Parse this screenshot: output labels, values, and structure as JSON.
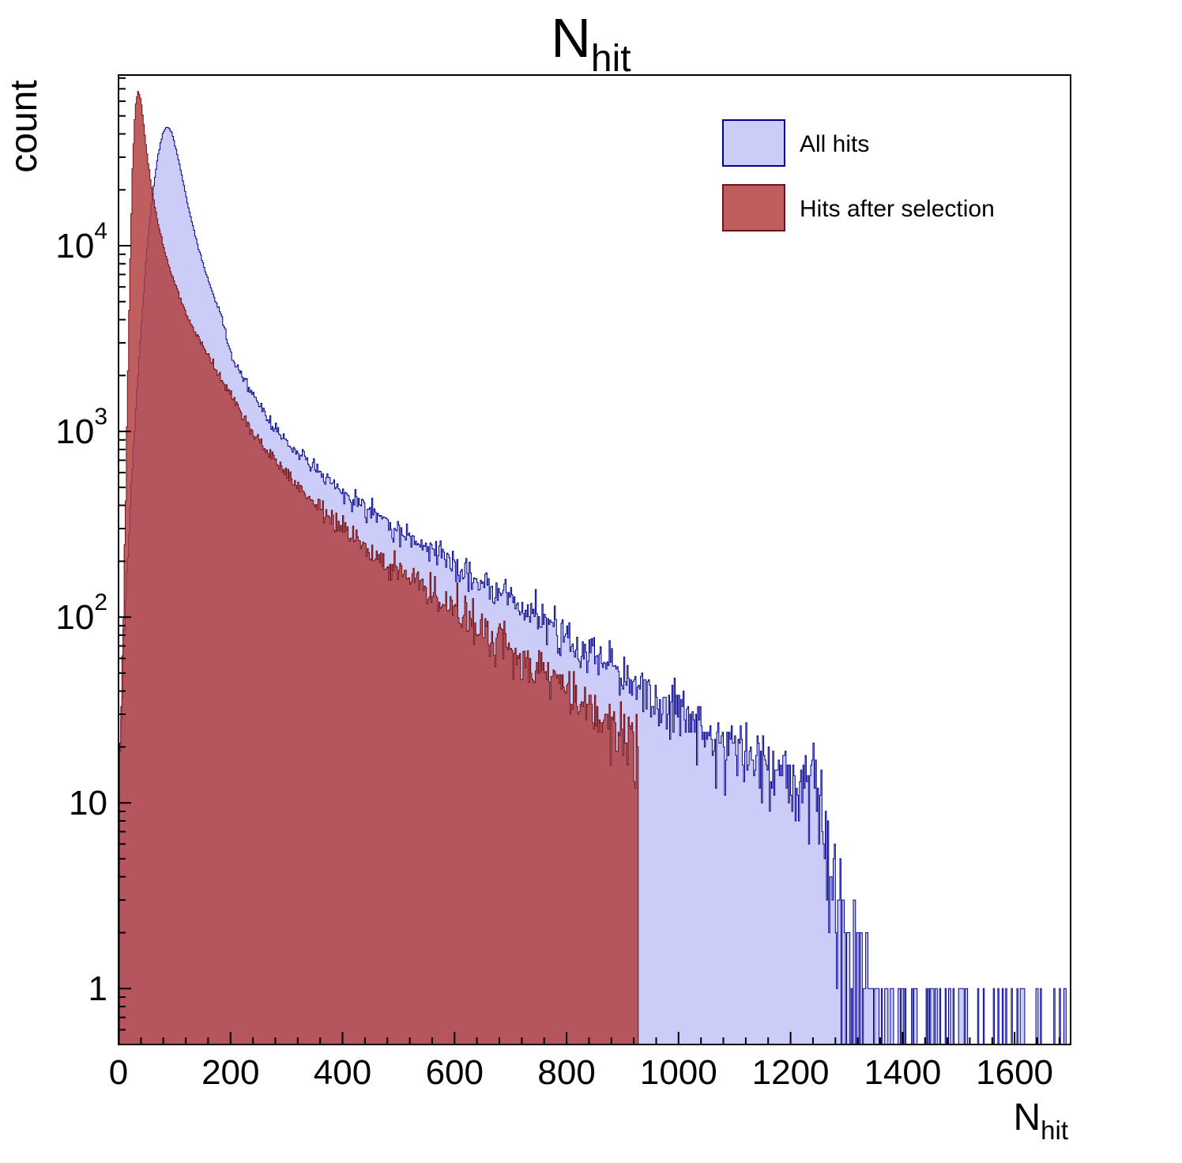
{
  "chart_data": {
    "type": "histogram",
    "title": {
      "main": "N",
      "sub": "hit"
    },
    "xlabel": {
      "main": "N",
      "sub": "hit"
    },
    "ylabel": "count",
    "y_scale": "log",
    "grid": false,
    "x_range": [
      0,
      1700
    ],
    "y_range": [
      0.5,
      83000
    ],
    "x_ticks": [
      0,
      200,
      400,
      600,
      800,
      1000,
      1200,
      1400,
      1600
    ],
    "x_tick_step": 200,
    "x_minor_step": 40,
    "y_ticks": [
      1,
      10,
      100,
      1000,
      10000
    ],
    "bin_width": 2,
    "legend_position": "top-right",
    "series": [
      {
        "name": "All hits",
        "fill": "#ccccf8",
        "stroke": "#00008f",
        "opacity": 1,
        "x_max": 1700,
        "anchors": {
          "x": [
            2,
            6,
            10,
            15,
            20,
            30,
            40,
            50,
            60,
            70,
            80,
            88,
            95,
            105,
            115,
            125,
            140,
            155,
            170,
            185,
            200,
            225,
            250,
            275,
            300,
            350,
            400,
            450,
            500,
            550,
            600,
            650,
            700,
            750,
            800,
            850,
            900,
            950,
            1000,
            1050,
            1100,
            1150,
            1200,
            1245,
            1265,
            1280,
            1300,
            1330,
            1370,
            1420,
            1480,
            1560,
            1650,
            1700
          ],
          "y": [
            15,
            40,
            90,
            180,
            350,
            1200,
            3500,
            9000,
            18000,
            30000,
            41500,
            44000,
            41000,
            31000,
            22500,
            16000,
            10500,
            7300,
            5400,
            4100,
            2600,
            1900,
            1400,
            1100,
            880,
            640,
            480,
            370,
            295,
            235,
            190,
            152,
            122,
            97,
            77,
            61,
            48,
            38,
            30,
            24,
            20,
            17,
            15,
            13,
            6,
            3,
            1.8,
            1.1,
            0.7,
            0.5,
            0.4,
            0.3,
            0.3,
            0.5
          ]
        }
      },
      {
        "name": "Hits after selection",
        "fill": "#b03a3a",
        "stroke": "#721015",
        "opacity": 0.82,
        "x_max": 930,
        "anchors": {
          "x": [
            3,
            8,
            12,
            16,
            20,
            25,
            30,
            35,
            40,
            45,
            50,
            60,
            70,
            80,
            90,
            100,
            115,
            130,
            145,
            160,
            180,
            200,
            225,
            250,
            275,
            300,
            350,
            400,
            450,
            500,
            550,
            600,
            650,
            700,
            750,
            800,
            850,
            900,
            928
          ],
          "y": [
            20,
            80,
            300,
            1500,
            6500,
            26000,
            56000,
            68000,
            61000,
            45000,
            33000,
            19500,
            13500,
            10000,
            7800,
            6300,
            4800,
            3800,
            3100,
            2550,
            2000,
            1600,
            1180,
            900,
            720,
            590,
            410,
            300,
            228,
            175,
            138,
            108,
            85,
            66,
            52,
            40,
            31,
            24,
            20
          ]
        }
      }
    ]
  }
}
